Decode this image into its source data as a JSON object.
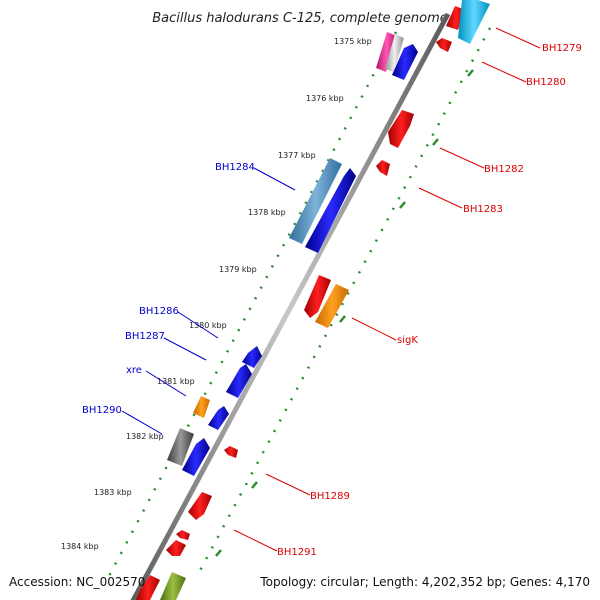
{
  "title": "Bacillus halodurans C-125, complete genome",
  "footer": {
    "accession": "Accession: NC_002570",
    "topology": "Topology: circular; Length: 4,202,352 bp; Genes: 4,170"
  },
  "colors": {
    "backbone": "#8a8a8a",
    "tick_green": "#2e8b2e",
    "label_forward": "#0000cc",
    "label_reverse": "#dd0000"
  },
  "kbp_labels": [
    "1375 kbp",
    "1376 kbp",
    "1377 kbp",
    "1378 kbp",
    "1379 kbp",
    "1380 kbp",
    "1381 kbp",
    "1382 kbp",
    "1383 kbp",
    "1384 kbp"
  ],
  "gene_labels": {
    "left": [
      "BH1284",
      "BH1286",
      "BH1287",
      "xre",
      "BH1290"
    ],
    "right": [
      "BH1279",
      "BH1280",
      "BH1282",
      "BH1283",
      "sigK",
      "BH1289",
      "BH1291"
    ]
  }
}
